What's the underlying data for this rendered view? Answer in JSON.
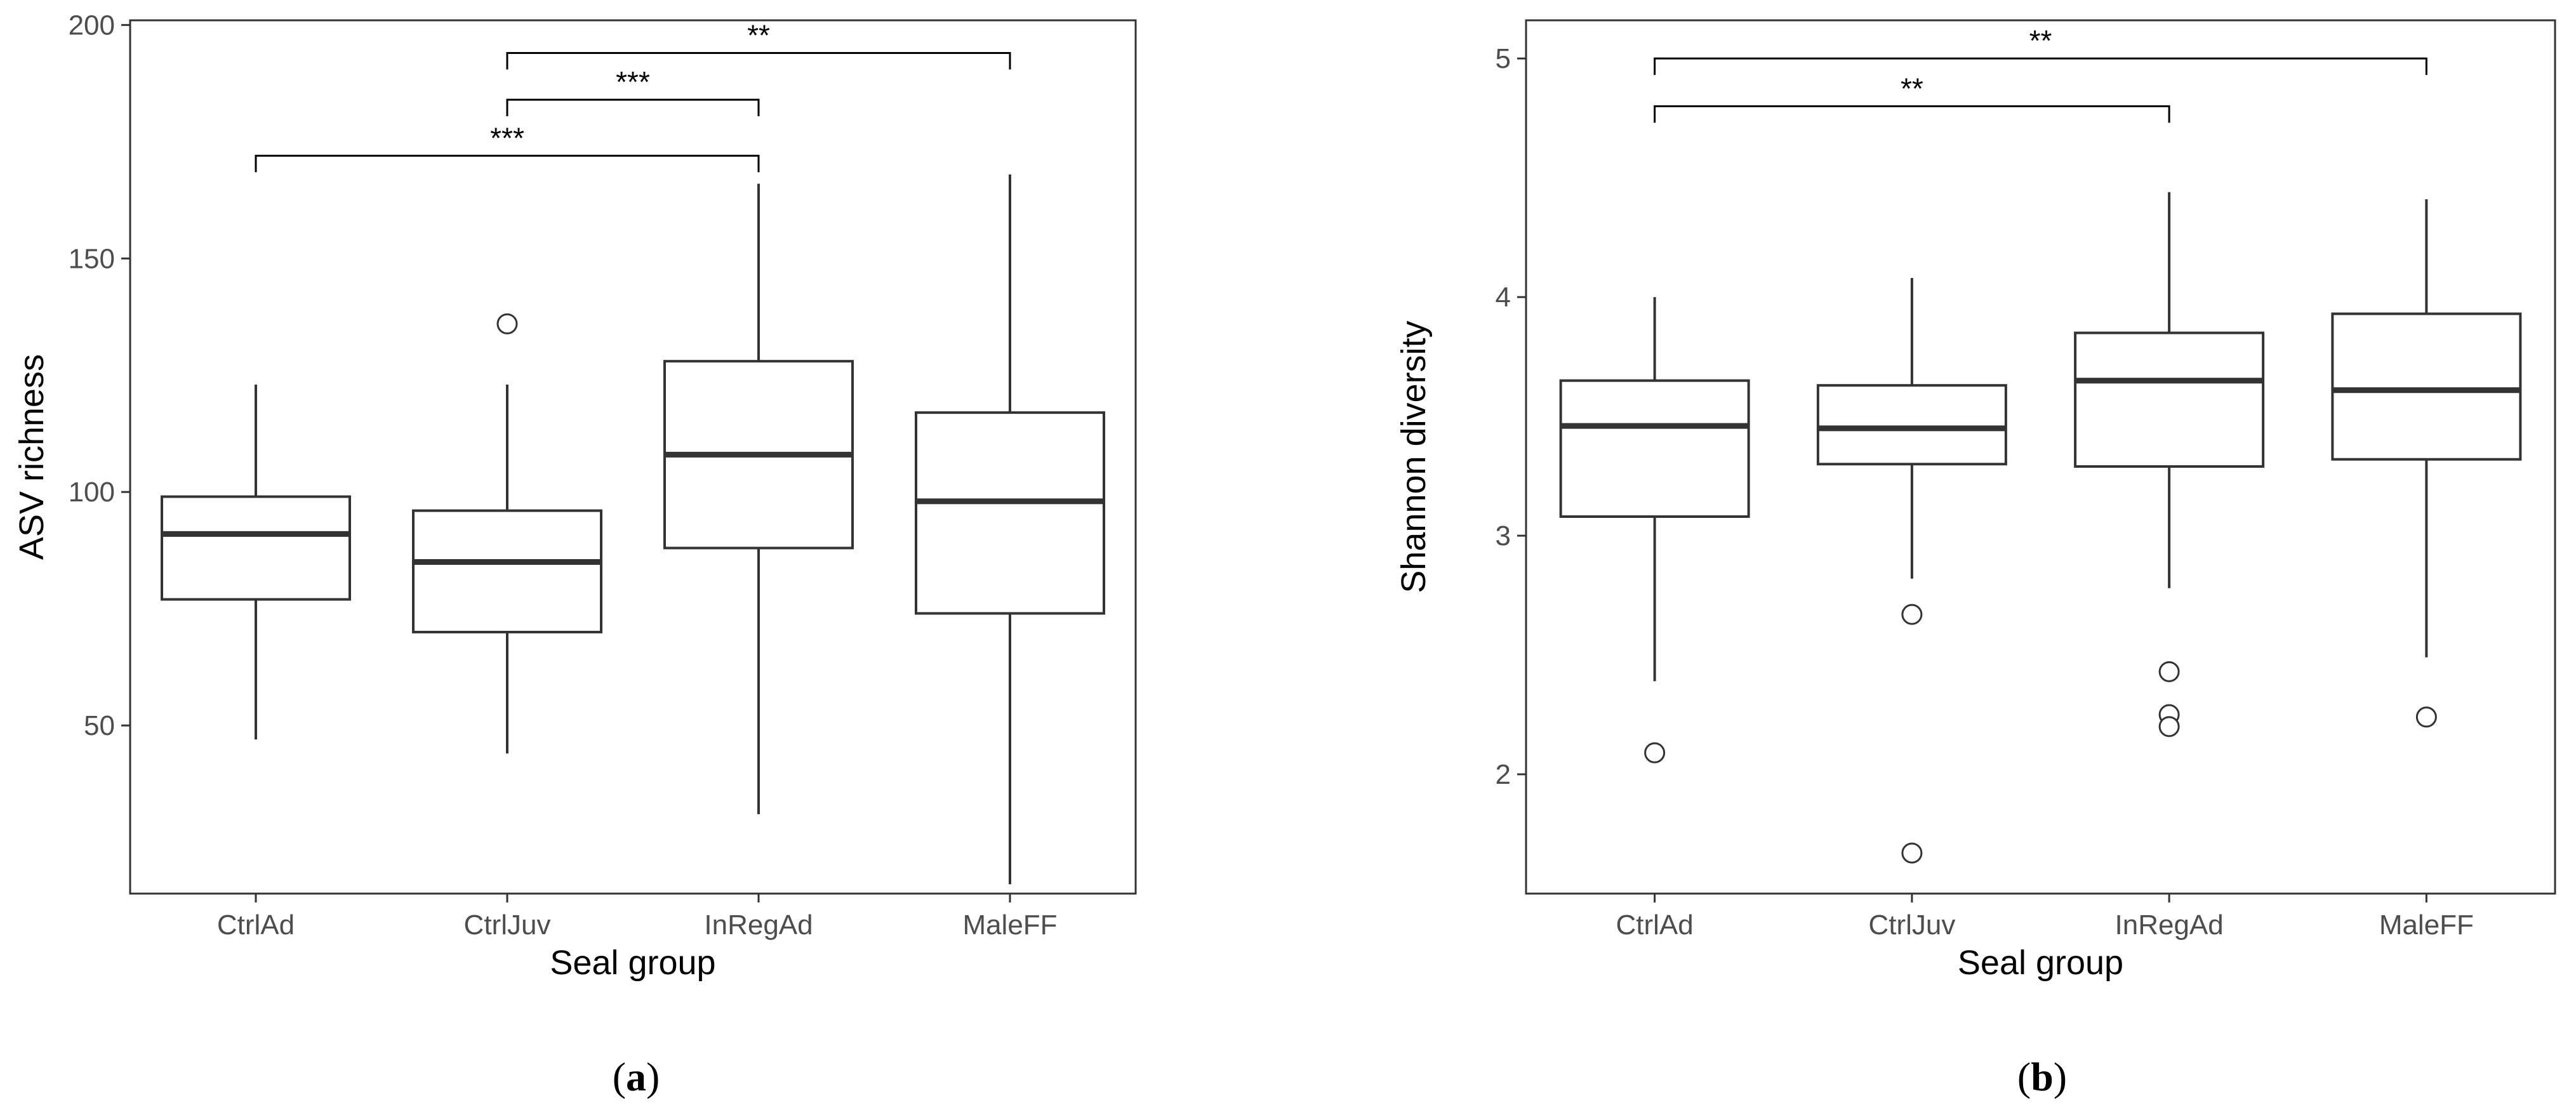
{
  "colors": {
    "box_stroke": "#333333",
    "median": "#333333",
    "panel_border": "#333333",
    "tick_text": "#4d4d4d",
    "background": "#ffffff"
  },
  "chart_data": [
    {
      "type": "box",
      "panel": "a",
      "caption_label": "a",
      "caption": {
        "open": "(",
        "letter": "a",
        "close": ")"
      },
      "xlabel": "Seal group",
      "ylabel": "ASV richness",
      "categories": [
        "CtrlAd",
        "CtrlJuv",
        "InRegAd",
        "MaleFF"
      ],
      "ylim": [
        14,
        201
      ],
      "yticks": [
        50,
        100,
        150,
        200
      ],
      "grid": false,
      "boxes": [
        {
          "category": "CtrlAd",
          "whisker_low": 47,
          "q1": 77,
          "median": 91,
          "q3": 99,
          "whisker_high": 123,
          "outliers": []
        },
        {
          "category": "CtrlJuv",
          "whisker_low": 44,
          "q1": 70,
          "median": 85,
          "q3": 96,
          "whisker_high": 123,
          "outliers": [
            136
          ]
        },
        {
          "category": "InRegAd",
          "whisker_low": 31,
          "q1": 88,
          "median": 108,
          "q3": 128,
          "whisker_high": 166,
          "outliers": []
        },
        {
          "category": "MaleFF",
          "whisker_low": 16,
          "q1": 74,
          "median": 98,
          "q3": 117,
          "whisker_high": 168,
          "outliers": []
        }
      ],
      "significance": [
        {
          "from": "CtrlJuv",
          "to": "MaleFF",
          "label": "**",
          "y": 194
        },
        {
          "from": "CtrlJuv",
          "to": "InRegAd",
          "label": "***",
          "y": 184
        },
        {
          "from": "CtrlAd",
          "to": "InRegAd",
          "label": "***",
          "y": 172
        }
      ]
    },
    {
      "type": "box",
      "panel": "b",
      "caption_label": "b",
      "caption": {
        "open": "(",
        "letter": "b",
        "close": ")"
      },
      "xlabel": "Seal group",
      "ylabel": "Shannon diversity",
      "categories": [
        "CtrlAd",
        "CtrlJuv",
        "InRegAd",
        "MaleFF"
      ],
      "ylim": [
        1.5,
        5.16
      ],
      "yticks": [
        2,
        3,
        4,
        5
      ],
      "grid": false,
      "boxes": [
        {
          "category": "CtrlAd",
          "whisker_low": 2.39,
          "q1": 3.08,
          "median": 3.46,
          "q3": 3.65,
          "whisker_high": 4.0,
          "outliers": [
            2.09
          ]
        },
        {
          "category": "CtrlJuv",
          "whisker_low": 2.82,
          "q1": 3.3,
          "median": 3.45,
          "q3": 3.63,
          "whisker_high": 4.08,
          "outliers": [
            2.67,
            1.67
          ]
        },
        {
          "category": "InRegAd",
          "whisker_low": 2.78,
          "q1": 3.29,
          "median": 3.65,
          "q3": 3.85,
          "whisker_high": 4.44,
          "outliers": [
            2.43,
            2.25,
            2.2
          ]
        },
        {
          "category": "MaleFF",
          "whisker_low": 2.49,
          "q1": 3.32,
          "median": 3.61,
          "q3": 3.93,
          "whisker_high": 4.41,
          "outliers": [
            2.24
          ]
        }
      ],
      "significance": [
        {
          "from": "CtrlAd",
          "to": "MaleFF",
          "label": "**",
          "y": 5.0
        },
        {
          "from": "CtrlAd",
          "to": "InRegAd",
          "label": "**",
          "y": 4.8
        }
      ]
    }
  ]
}
